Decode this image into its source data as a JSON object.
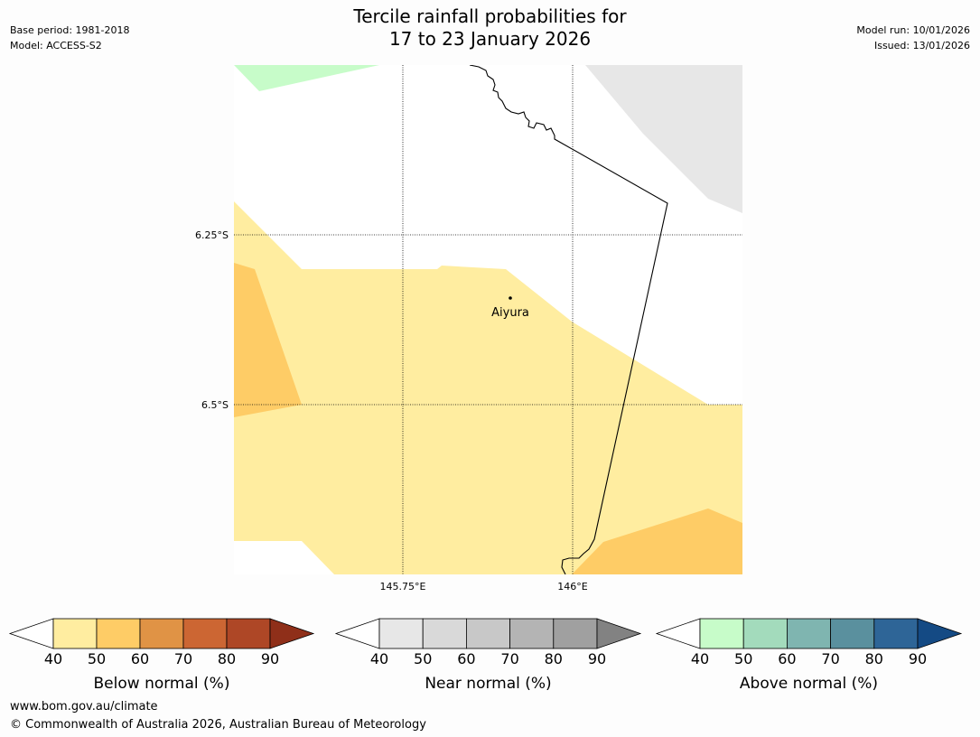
{
  "header": {
    "title_line1": "Tercile rainfall probabilities for",
    "title_line2": "17 to 23 January 2026",
    "base_period": "Base period: 1981-2018",
    "model": "Model: ACCESS-S2",
    "model_run": "Model run: 10/01/2026",
    "issued": "Issued: 13/01/2026"
  },
  "map": {
    "lat_labels": [
      "6.25°S",
      "6.5°S"
    ],
    "lon_labels": [
      "145.75°E",
      "146°E"
    ],
    "place_label": "Aiyura",
    "region_colors": {
      "below_40_50": "#ffeda0",
      "below_50_60": "#fecc66",
      "near_40_50": "#e7e7e7",
      "above_40_50": "#c7fcc9",
      "background": "#ffffff"
    }
  },
  "legends": [
    {
      "name": "below",
      "label": "Below normal (%)",
      "ticks": [
        "40",
        "50",
        "60",
        "70",
        "80",
        "90"
      ],
      "colors": [
        "#ffeda0",
        "#fecc66",
        "#e09345",
        "#cc6633",
        "#ae4726",
        "#8f2f19"
      ]
    },
    {
      "name": "near",
      "label": "Near normal (%)",
      "ticks": [
        "40",
        "50",
        "60",
        "70",
        "80",
        "90"
      ],
      "colors": [
        "#e7e7e7",
        "#d9d9d9",
        "#c8c8c8",
        "#b4b4b4",
        "#a0a0a0",
        "#828282"
      ]
    },
    {
      "name": "above",
      "label": "Above normal (%)",
      "ticks": [
        "40",
        "50",
        "60",
        "70",
        "80",
        "90"
      ],
      "colors": [
        "#c7fcc9",
        "#a3dbbc",
        "#7fb5b0",
        "#5a909e",
        "#2e6597",
        "#144a84"
      ]
    }
  ],
  "footer": {
    "url": "www.bom.gov.au/climate",
    "copyright": "© Commonwealth of Australia 2026, Australian Bureau of Meteorology"
  }
}
